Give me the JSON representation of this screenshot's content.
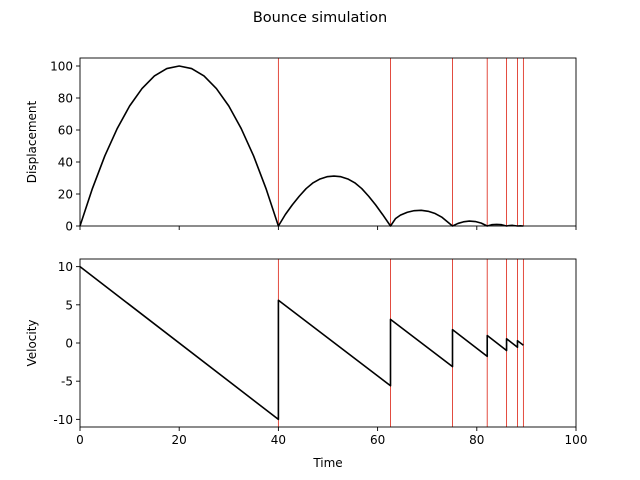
{
  "figure_title": "Bounce simulation",
  "chart_data": [
    {
      "type": "line",
      "title": "",
      "xlabel": "",
      "ylabel": "Displacement",
      "xlim": [
        0,
        100
      ],
      "ylim": [
        0,
        105
      ],
      "xticks": [
        0,
        20,
        40,
        60,
        80,
        100
      ],
      "xtick_labels_shown": false,
      "yticks": [
        0,
        20,
        40,
        60,
        80,
        100
      ],
      "grid": false,
      "bounce_lines": [
        40.0,
        62.6,
        75.1,
        82.1,
        86.0,
        88.2,
        89.4
      ],
      "bounce_line_color": "#e0392b",
      "line_color": "#000000",
      "series": [
        {
          "values": [
            [
              0,
              0
            ],
            [
              2.5,
              23.4
            ],
            [
              5,
              43.8
            ],
            [
              7.5,
              60.9
            ],
            [
              10,
              75.0
            ],
            [
              12.5,
              85.9
            ],
            [
              15,
              93.8
            ],
            [
              17.5,
              98.4
            ],
            [
              20,
              100.0
            ],
            [
              22.5,
              98.4
            ],
            [
              25,
              93.8
            ],
            [
              27.5,
              85.9
            ],
            [
              30,
              75.0
            ],
            [
              32.5,
              60.9
            ],
            [
              35,
              43.8
            ],
            [
              37.5,
              23.4
            ],
            [
              40,
              0
            ],
            [
              41.4,
              7.2
            ],
            [
              42.8,
              13.2
            ],
            [
              44.2,
              18.6
            ],
            [
              45.6,
              23.4
            ],
            [
              47.0,
              27.0
            ],
            [
              48.4,
              29.4
            ],
            [
              49.8,
              30.8
            ],
            [
              51.2,
              31.2
            ],
            [
              52.6,
              30.8
            ],
            [
              54.0,
              29.4
            ],
            [
              55.4,
              27.0
            ],
            [
              56.8,
              23.4
            ],
            [
              58.2,
              18.6
            ],
            [
              59.6,
              13.2
            ],
            [
              61.0,
              7.2
            ],
            [
              62.6,
              0
            ],
            [
              63.6,
              4.6
            ],
            [
              64.6,
              6.8
            ],
            [
              66.0,
              8.6
            ],
            [
              67.4,
              9.6
            ],
            [
              68.8,
              9.8
            ],
            [
              70.2,
              9.2
            ],
            [
              71.6,
              7.8
            ],
            [
              73.0,
              5.4
            ],
            [
              75.1,
              0
            ],
            [
              76.2,
              1.6
            ],
            [
              77.3,
              2.6
            ],
            [
              78.5,
              3.1
            ],
            [
              79.7,
              2.8
            ],
            [
              80.9,
              1.8
            ],
            [
              82.1,
              0
            ],
            [
              83.0,
              0.8
            ],
            [
              84.0,
              1.0
            ],
            [
              85.0,
              0.8
            ],
            [
              86.0,
              0
            ],
            [
              86.6,
              0.3
            ],
            [
              87.2,
              0.4
            ],
            [
              88.2,
              0
            ],
            [
              88.8,
              0.1
            ],
            [
              89.4,
              0
            ]
          ]
        }
      ]
    },
    {
      "type": "line",
      "title": "",
      "xlabel": "Time",
      "ylabel": "Velocity",
      "xlim": [
        0,
        100
      ],
      "ylim": [
        -11,
        11
      ],
      "xticks": [
        0,
        20,
        40,
        60,
        80,
        100
      ],
      "yticks": [
        -10,
        -5,
        0,
        5,
        10
      ],
      "grid": false,
      "bounce_lines": [
        40.0,
        62.6,
        75.1,
        82.1,
        86.0,
        88.2,
        89.4
      ],
      "bounce_line_color": "#e0392b",
      "line_color": "#000000",
      "series": [
        {
          "values": [
            [
              0,
              10.0
            ],
            [
              40,
              -10.0
            ],
            [
              40,
              5.6
            ],
            [
              62.6,
              -5.6
            ],
            [
              62.6,
              3.1
            ],
            [
              75.1,
              -3.1
            ],
            [
              75.1,
              1.75
            ],
            [
              82.1,
              -1.75
            ],
            [
              82.1,
              0.98
            ],
            [
              86.0,
              -0.98
            ],
            [
              86.0,
              0.55
            ],
            [
              88.2,
              -0.55
            ],
            [
              88.2,
              0.3
            ],
            [
              89.4,
              -0.3
            ]
          ]
        }
      ]
    }
  ]
}
